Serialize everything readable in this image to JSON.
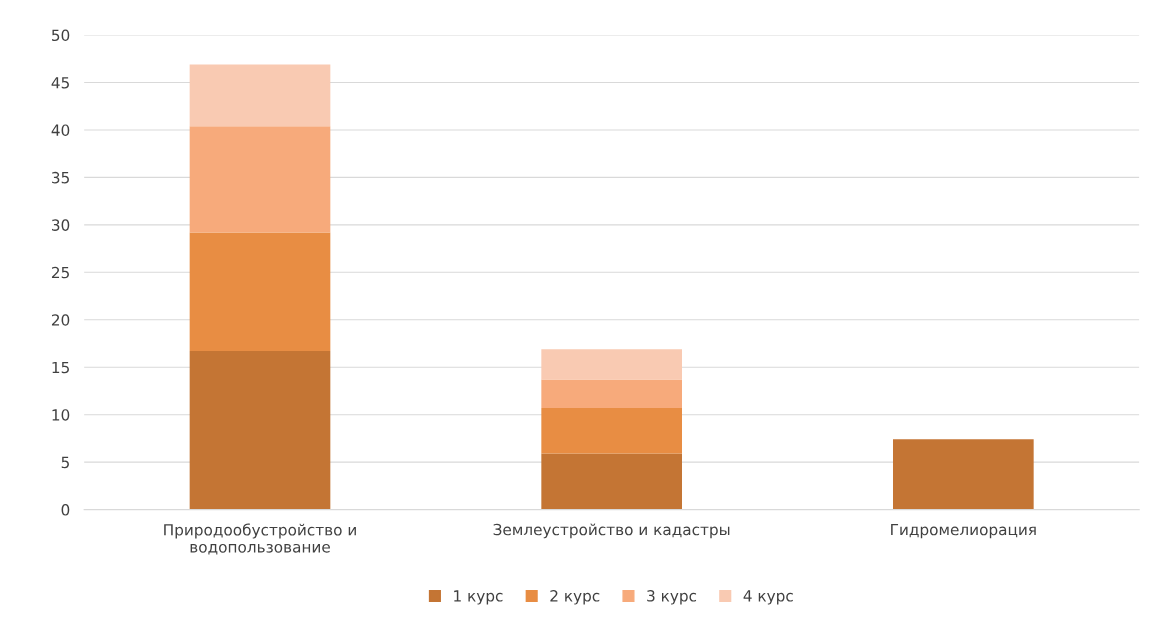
{
  "chart_data": {
    "type": "bar",
    "stacked": true,
    "categories": [
      "Природообустройство и\nводопользование",
      "Землеустройство и кадастры",
      "Гидромелиорация"
    ],
    "series": [
      {
        "name": "1 курс",
        "color": "#c47534",
        "values": [
          16.7,
          5.9,
          7.4
        ]
      },
      {
        "name": "2 курс",
        "color": "#e88d43",
        "values": [
          12.5,
          4.8,
          null
        ]
      },
      {
        "name": "3 курс",
        "color": "#f7aa7b",
        "values": [
          11.2,
          3.0,
          null
        ]
      },
      {
        "name": "4 курс",
        "color": "#f9cab2",
        "values": [
          6.5,
          3.2,
          null
        ]
      }
    ],
    "ylim": [
      0,
      50
    ],
    "yticks": [
      0,
      5,
      10,
      15,
      20,
      25,
      30,
      35,
      40,
      45,
      50
    ],
    "grid": "y",
    "legend": "bottom"
  }
}
